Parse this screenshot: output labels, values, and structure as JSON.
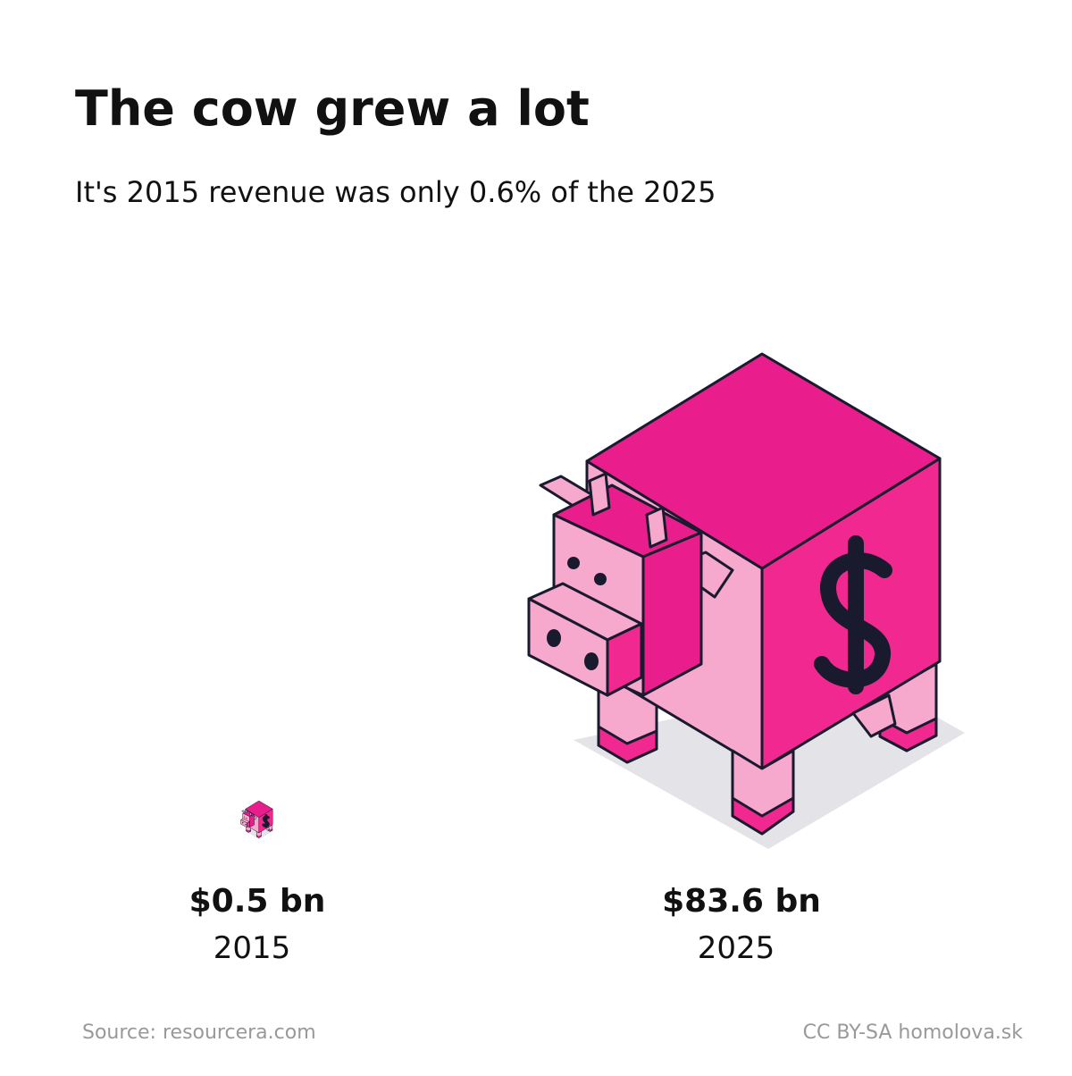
{
  "chart_data": {
    "type": "pictogram",
    "title": "The cow grew a lot",
    "subtitle": "It's 2015 revenue was only 0.6% of the 2025",
    "categories": [
      "2015",
      "2025"
    ],
    "values": [
      0.5,
      83.6
    ],
    "value_labels": [
      "$0.5 bn",
      "$83.6 bn"
    ],
    "color": "#e91e8c",
    "source": "Source: resourcera.com",
    "credit": "CC BY-SA homolova.sk"
  }
}
